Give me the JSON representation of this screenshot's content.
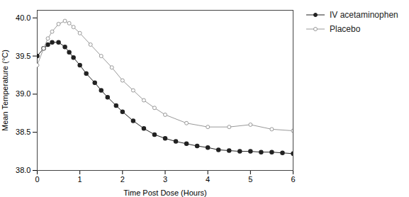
{
  "chart_data": {
    "type": "line",
    "xlabel": "Time Post Dose (Hours)",
    "ylabel": "Mean Temperature (°C)",
    "xlim": [
      0,
      6
    ],
    "ylim": [
      38.0,
      40.1
    ],
    "xticks": [
      0,
      1,
      2,
      3,
      4,
      5,
      6
    ],
    "yticks": [
      {
        "value": 38.0,
        "label": "38.0"
      },
      38.5,
      {
        "value": 39.0,
        "label": "39.0"
      },
      39.5,
      {
        "value": 40.0,
        "label": "40.0"
      }
    ],
    "legend": "right",
    "series": [
      {
        "name": "IV acetaminophen",
        "color": "#222222",
        "marker": "circle",
        "x": [
          0,
          0.15,
          0.25,
          0.35,
          0.5,
          0.65,
          0.75,
          0.85,
          1.0,
          1.15,
          1.35,
          1.5,
          1.65,
          1.85,
          2.0,
          2.25,
          2.5,
          2.75,
          3.0,
          3.25,
          3.5,
          3.75,
          4.0,
          4.25,
          4.5,
          4.75,
          5.0,
          5.25,
          5.5,
          5.75,
          6.0
        ],
        "values": [
          39.5,
          39.6,
          39.65,
          39.68,
          39.68,
          39.62,
          39.55,
          39.48,
          39.38,
          39.27,
          39.15,
          39.05,
          38.96,
          38.85,
          38.77,
          38.65,
          38.55,
          38.47,
          38.42,
          38.38,
          38.35,
          38.32,
          38.3,
          38.27,
          38.26,
          38.25,
          38.25,
          38.24,
          38.24,
          38.23,
          38.22
        ]
      },
      {
        "name": "Placebo",
        "color": "#999999",
        "marker": "open circle",
        "x": [
          0,
          0.15,
          0.25,
          0.35,
          0.5,
          0.65,
          0.75,
          0.85,
          1.0,
          1.25,
          1.5,
          1.75,
          2.0,
          2.25,
          2.5,
          2.75,
          3.0,
          3.5,
          4.0,
          4.5,
          5.0,
          5.5,
          6.0
        ],
        "values": [
          39.38,
          39.6,
          39.73,
          39.82,
          39.92,
          39.96,
          39.93,
          39.88,
          39.8,
          39.65,
          39.5,
          39.35,
          39.18,
          39.05,
          38.92,
          38.82,
          38.73,
          38.62,
          38.57,
          38.57,
          38.6,
          38.54,
          38.52
        ]
      }
    ]
  }
}
